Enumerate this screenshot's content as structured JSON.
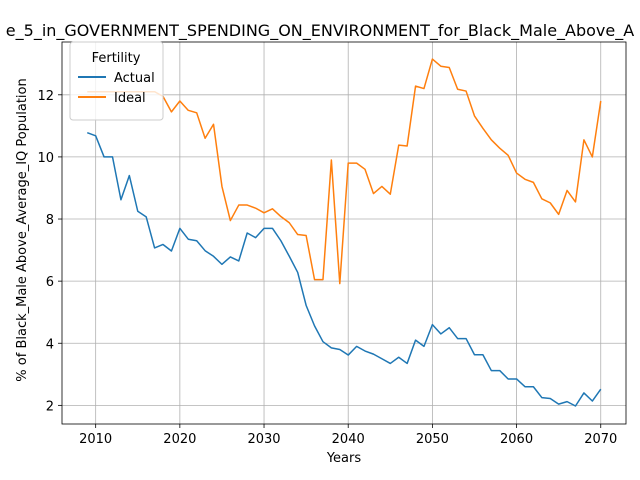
{
  "chart_data": {
    "type": "line",
    "title": "e_5_in_GOVERNMENT_SPENDING_ON_ENVIRONMENT_for_Black_Male_Above_A",
    "xlabel": "Years",
    "ylabel": "% of Black_Male Above_Average_IQ Population",
    "xlim": [
      2006,
      2073
    ],
    "ylim": [
      1.4,
      13.7
    ],
    "xticks": [
      2010,
      2020,
      2030,
      2040,
      2050,
      2060,
      2070
    ],
    "yticks": [
      2,
      4,
      6,
      8,
      10,
      12
    ],
    "grid": true,
    "legend": {
      "title": "Fertility",
      "placement": "top-left"
    },
    "colors": {
      "Actual": "#1f77b4",
      "Ideal": "#ff7f0e"
    },
    "x": [
      2009,
      2010,
      2011,
      2012,
      2013,
      2014,
      2015,
      2016,
      2017,
      2018,
      2019,
      2020,
      2021,
      2022,
      2023,
      2024,
      2025,
      2026,
      2027,
      2028,
      2029,
      2030,
      2031,
      2032,
      2033,
      2034,
      2035,
      2036,
      2037,
      2038,
      2039,
      2040,
      2041,
      2042,
      2043,
      2044,
      2045,
      2046,
      2047,
      2048,
      2049,
      2050,
      2051,
      2052,
      2053,
      2054,
      2055,
      2056,
      2057,
      2058,
      2059,
      2060,
      2061,
      2062,
      2063,
      2064,
      2065,
      2066,
      2067,
      2068,
      2069,
      2070
    ],
    "series": [
      {
        "name": "Actual",
        "values": [
          10.78,
          10.68,
          10.0,
          10.0,
          8.62,
          9.4,
          8.25,
          8.07,
          7.07,
          7.18,
          6.97,
          7.7,
          7.35,
          7.3,
          6.98,
          6.8,
          6.54,
          6.78,
          6.65,
          7.55,
          7.4,
          7.7,
          7.7,
          7.3,
          6.8,
          6.28,
          5.22,
          4.56,
          4.05,
          3.85,
          3.8,
          3.62,
          3.9,
          3.75,
          3.65,
          3.5,
          3.35,
          3.55,
          3.35,
          4.1,
          3.9,
          4.6,
          4.3,
          4.5,
          4.15,
          4.15,
          3.63,
          3.63,
          3.12,
          3.12,
          2.85,
          2.85,
          2.6,
          2.6,
          2.25,
          2.22,
          2.04,
          2.12,
          1.98,
          2.4,
          2.14,
          2.52
        ]
      },
      {
        "name": "Ideal",
        "values": [
          12.1,
          12.1,
          12.1,
          12.1,
          12.1,
          12.1,
          12.1,
          12.1,
          12.1,
          11.95,
          11.45,
          11.8,
          11.5,
          11.42,
          10.6,
          11.05,
          9.05,
          7.95,
          8.45,
          8.45,
          8.35,
          8.2,
          8.33,
          8.08,
          7.88,
          7.5,
          7.47,
          6.05,
          6.05,
          9.9,
          5.92,
          9.8,
          9.8,
          9.6,
          8.82,
          9.05,
          8.8,
          10.38,
          10.35,
          12.28,
          12.2,
          13.15,
          12.92,
          12.88,
          12.18,
          12.12,
          11.32,
          10.92,
          10.55,
          10.28,
          10.05,
          9.48,
          9.28,
          9.18,
          8.65,
          8.52,
          8.15,
          8.92,
          8.55,
          10.55,
          10.0,
          11.8
        ]
      }
    ]
  }
}
